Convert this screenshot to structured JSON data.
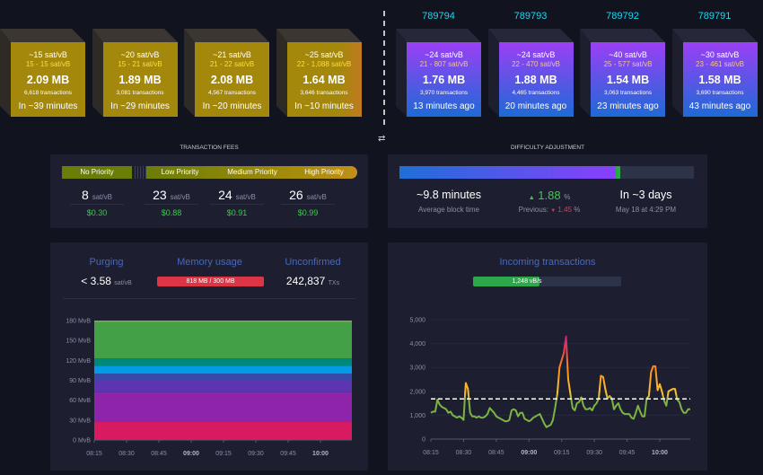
{
  "mempool_blocks": [
    {
      "median_fee": "~15 sat/vB",
      "fee_range": "15 - 15 sat/vB",
      "size": "2.09 MB",
      "tx_count": "6,618 transactions",
      "eta": "In ~39 minutes"
    },
    {
      "median_fee": "~20 sat/vB",
      "fee_range": "15 - 21 sat/vB",
      "size": "1.89 MB",
      "tx_count": "3,081 transactions",
      "eta": "In ~29 minutes"
    },
    {
      "median_fee": "~21 sat/vB",
      "fee_range": "21 - 22 sat/vB",
      "size": "2.08 MB",
      "tx_count": "4,567 transactions",
      "eta": "In ~20 minutes"
    },
    {
      "median_fee": "~25 sat/vB",
      "fee_range": "22 - 1,088 sat/vB",
      "size": "1.64 MB",
      "tx_count": "3,646 transactions",
      "eta": "In ~10 minutes"
    }
  ],
  "blockchain_blocks": [
    {
      "height": "789794",
      "median_fee": "~24 sat/vB",
      "fee_range": "21 - 807 sat/vB",
      "size": "1.76 MB",
      "tx_count": "3,970 transactions",
      "time": "13 minutes ago"
    },
    {
      "height": "789793",
      "median_fee": "~24 sat/vB",
      "fee_range": "22 - 470 sat/vB",
      "size": "1.88 MB",
      "tx_count": "4,465 transactions",
      "time": "20 minutes ago"
    },
    {
      "height": "789792",
      "median_fee": "~40 sat/vB",
      "fee_range": "25 - 577 sat/vB",
      "size": "1.54 MB",
      "tx_count": "3,063 transactions",
      "time": "23 minutes ago"
    },
    {
      "height": "789791",
      "median_fee": "~30 sat/vB",
      "fee_range": "23 - 461 sat/vB",
      "size": "1.58 MB",
      "tx_count": "3,690 transactions",
      "time": "43 minutes ago"
    }
  ],
  "fees": {
    "title": "Transaction Fees",
    "labels": [
      "No Priority",
      "Low Priority",
      "Medium Priority",
      "High Priority"
    ],
    "columns": [
      {
        "value": "8",
        "unit": "sat/vB",
        "usd": "$0.30"
      },
      {
        "value": "23",
        "unit": "sat/vB",
        "usd": "$0.88"
      },
      {
        "value": "24",
        "unit": "sat/vB",
        "usd": "$0.91"
      },
      {
        "value": "26",
        "unit": "sat/vB",
        "usd": "$0.99"
      }
    ]
  },
  "difficulty": {
    "title": "Difficulty Adjustment",
    "progress_percent": 75,
    "avg_block_time": "~9.8 minutes",
    "avg_block_time_label": "Average block time",
    "change": "1.88",
    "change_unit": "%",
    "previous_label": "Previous:",
    "previous": "1.45",
    "previous_unit": "%",
    "eta": "In ~3 days",
    "eta_date": "May 18 at 4:29 PM"
  },
  "mempool": {
    "purging_label": "Purging",
    "purging_value": "< 3.58",
    "purging_unit": "sat/vB",
    "memory_label": "Memory usage",
    "memory_value": "818 MB / 300 MB",
    "unconfirmed_label": "Unconfirmed",
    "unconfirmed_value": "242,837",
    "unconfirmed_unit": "TXs"
  },
  "incoming": {
    "title": "Incoming transactions",
    "rate": "1,248 vB/s",
    "rate_fill_percent": 45
  },
  "chart_data": [
    {
      "type": "area",
      "stacked": true,
      "ylim": [
        0,
        180
      ],
      "yticks": [
        "0 MvB",
        "30 MvB",
        "60 MvB",
        "90 MvB",
        "120 MvB",
        "150 MvB",
        "180 MvB"
      ],
      "xticks": [
        "08:15",
        "08:30",
        "08:45",
        "09:00",
        "09:15",
        "09:30",
        "09:45",
        "10:00"
      ],
      "layers": [
        {
          "top": 28,
          "color": "#d81b60"
        },
        {
          "top": 72,
          "color": "#8e24aa"
        },
        {
          "top": 90,
          "color": "#5e35b1"
        },
        {
          "top": 100,
          "color": "#3949ab"
        },
        {
          "top": 112,
          "color": "#039be5"
        },
        {
          "top": 123,
          "color": "#00897b"
        },
        {
          "top": 178,
          "color": "#43a047"
        },
        {
          "top": 180,
          "color": "#7cb342"
        }
      ]
    },
    {
      "type": "line",
      "ylim": [
        0,
        5000
      ],
      "xstart": "08:15",
      "x_step_minutes": 1,
      "yticks": [
        "0",
        "1,000",
        "2,000",
        "3,000",
        "4,000",
        "5,000"
      ],
      "xticks": [
        "08:15",
        "08:30",
        "08:45",
        "09:00",
        "09:15",
        "09:30",
        "09:45",
        "10:00"
      ],
      "reference_line": 1680,
      "values": [
        1100,
        1150,
        1150,
        1650,
        1450,
        1350,
        1300,
        1250,
        1100,
        1150,
        1000,
        950,
        900,
        950,
        900,
        800,
        2350,
        2100,
        1100,
        950,
        950,
        900,
        950,
        900,
        900,
        950,
        1050,
        1300,
        1200,
        1100,
        950,
        900,
        850,
        800,
        750,
        750,
        800,
        1200,
        1250,
        1200,
        950,
        1100,
        1100,
        850,
        800,
        750,
        800,
        900,
        950,
        1000,
        1050,
        850,
        650,
        500,
        550,
        600,
        800,
        1300,
        1900,
        3000,
        3300,
        3600,
        4300,
        2500,
        1900,
        1300,
        1200,
        1500,
        1550,
        1750,
        1400,
        1250,
        1250,
        1300,
        1200,
        1400,
        1500,
        1700,
        2650,
        2600,
        2100,
        1700,
        1800,
        1700,
        1250,
        1400,
        1500,
        1250,
        1100,
        1050,
        1050,
        1050,
        900,
        850,
        1100,
        1400,
        1150,
        950,
        950,
        1700,
        1800,
        2800,
        3050,
        3050,
        2050,
        2300,
        2000,
        1600,
        1400,
        2000,
        2050,
        2100,
        2100,
        1650,
        1550,
        1250,
        1100,
        1100,
        1250,
        1250
      ]
    }
  ]
}
